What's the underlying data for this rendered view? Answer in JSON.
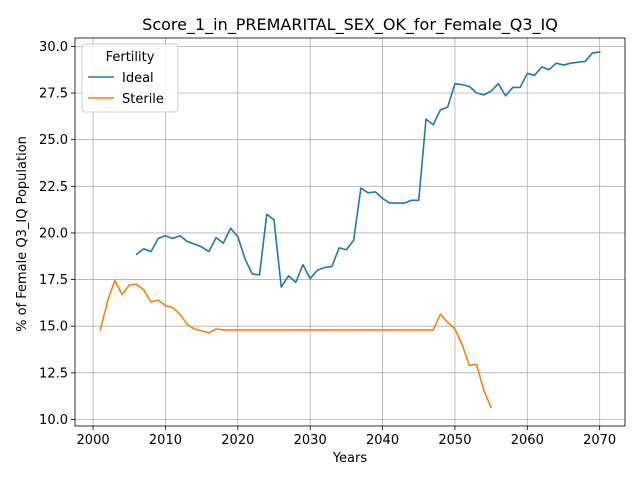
{
  "chart_data": {
    "type": "line",
    "title": "Score_1_in_PREMARITAL_SEX_OK_for_Female_Q3_IQ",
    "xlabel": "Years",
    "ylabel": "% of Female Q3_IQ Population",
    "xlim": [
      1997.5,
      2073.5
    ],
    "ylim": [
      9.65,
      30.45
    ],
    "xticks": [
      2000,
      2010,
      2020,
      2030,
      2040,
      2050,
      2060,
      2070
    ],
    "yticks": [
      10.0,
      12.5,
      15.0,
      17.5,
      20.0,
      22.5,
      25.0,
      27.5,
      30.0
    ],
    "grid": true,
    "legend": {
      "title": "Fertility",
      "placement": "top-left"
    },
    "series": [
      {
        "name": "Ideal",
        "color": "#1f77b4",
        "x": [
          2006,
          2007,
          2008,
          2009,
          2010,
          2011,
          2012,
          2013,
          2014,
          2015,
          2016,
          2017,
          2018,
          2019,
          2020,
          2021,
          2022,
          2023,
          2024,
          2025,
          2026,
          2027,
          2028,
          2029,
          2030,
          2031,
          2032,
          2033,
          2034,
          2035,
          2036,
          2037,
          2038,
          2039,
          2040,
          2041,
          2042,
          2043,
          2044,
          2045,
          2046,
          2047,
          2048,
          2049,
          2050,
          2051,
          2052,
          2053,
          2054,
          2055,
          2056,
          2057,
          2058,
          2059,
          2060,
          2061,
          2062,
          2063,
          2064,
          2065,
          2066,
          2067,
          2068,
          2069,
          2070
        ],
        "y": [
          18.85,
          19.15,
          19.0,
          19.7,
          19.85,
          19.7,
          19.85,
          19.55,
          19.4,
          19.25,
          19.0,
          19.75,
          19.45,
          20.25,
          19.8,
          18.6,
          17.8,
          17.75,
          21.0,
          20.7,
          17.1,
          17.7,
          17.35,
          18.3,
          17.55,
          18.0,
          18.15,
          18.2,
          19.2,
          19.1,
          19.6,
          22.4,
          22.15,
          22.2,
          21.85,
          21.6,
          21.6,
          21.6,
          21.75,
          21.75,
          26.1,
          25.8,
          26.6,
          26.75,
          28.0,
          27.95,
          27.85,
          27.5,
          27.4,
          27.6,
          28.0,
          27.35,
          27.8,
          27.8,
          28.55,
          28.45,
          28.9,
          28.75,
          29.1,
          29.0,
          29.1,
          29.15,
          29.2,
          29.65,
          29.7
        ]
      },
      {
        "name": "Sterile",
        "color": "#ff7f0e",
        "x": [
          2001,
          2002,
          2003,
          2004,
          2005,
          2006,
          2007,
          2008,
          2009,
          2010,
          2011,
          2012,
          2013,
          2014,
          2015,
          2016,
          2017,
          2018,
          2019,
          2020,
          2021,
          2022,
          2023,
          2024,
          2025,
          2026,
          2027,
          2028,
          2029,
          2030,
          2031,
          2032,
          2033,
          2034,
          2035,
          2036,
          2037,
          2038,
          2039,
          2040,
          2041,
          2042,
          2043,
          2044,
          2045,
          2046,
          2047,
          2048,
          2049,
          2050,
          2051,
          2052,
          2053,
          2054,
          2055
        ],
        "y": [
          14.8,
          16.35,
          17.45,
          16.7,
          17.2,
          17.25,
          16.95,
          16.3,
          16.4,
          16.1,
          16.0,
          15.65,
          15.1,
          14.85,
          14.75,
          14.65,
          14.85,
          14.8,
          14.8,
          14.8,
          14.8,
          14.8,
          14.8,
          14.8,
          14.8,
          14.8,
          14.8,
          14.8,
          14.8,
          14.8,
          14.8,
          14.8,
          14.8,
          14.8,
          14.8,
          14.8,
          14.8,
          14.8,
          14.8,
          14.8,
          14.8,
          14.8,
          14.8,
          14.8,
          14.8,
          14.8,
          14.8,
          15.65,
          15.2,
          14.85,
          14.0,
          12.9,
          12.95,
          11.55,
          10.65
        ]
      }
    ]
  }
}
